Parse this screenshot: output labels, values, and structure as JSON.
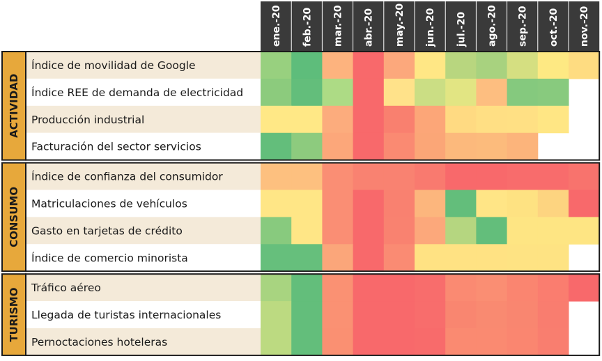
{
  "chart_data": {
    "type": "heatmap",
    "columns": [
      "ene.-20",
      "feb.-20",
      "mar.-20",
      "abr.-20",
      "may.-20",
      "jun.-20",
      "jul.-20",
      "ago.-20",
      "sep.-20",
      "oct.-20",
      "nov.-20"
    ],
    "groups": [
      {
        "name": "ACTIVIDAD",
        "rows": [
          {
            "label": "Índice de movilidad de Google",
            "cells": [
              "#98d07f",
              "#5ebd7b",
              "#fdb37e",
              "#f8696b",
              "#fca87c",
              "#ffe785",
              "#b8d67f",
              "#a8d27f",
              "#d5df81",
              "#fee983",
              "#fedc81"
            ]
          },
          {
            "label": "Índice REE de demanda de electricidad",
            "cells": [
              "#8ccb7d",
              "#63be7b",
              "#addb85",
              "#f8696b",
              "#ffe28a",
              "#cbde84",
              "#e2e583",
              "#fdbe80",
              "#85c97e",
              "#88ca7e",
              null
            ]
          },
          {
            "label": "Producción industrial",
            "cells": [
              "#ffe886",
              "#ffe886",
              "#fcac7d",
              "#f8696b",
              "#f9806f",
              "#fca678",
              "#ffda82",
              "#ffdf84",
              "#ffe084",
              "#ffe684",
              null
            ]
          },
          {
            "label": "Facturación del sector servicios",
            "cells": [
              "#63be7b",
              "#8dcb7e",
              "#fca77a",
              "#f8696b",
              "#fa8a72",
              "#fba677",
              "#fcb97c",
              "#fcbb7c",
              "#fcb47b",
              null,
              null
            ]
          }
        ]
      },
      {
        "name": "CONSUMO",
        "rows": [
          {
            "label": "Índice de confianza del consumidor",
            "cells": [
              "#fdc07f",
              "#fdc07f",
              "#fa8e74",
              "#f98271",
              "#f98271",
              "#f97a6f",
              "#f8696b",
              "#f8696b",
              "#f86c6c",
              "#f86c6c",
              "#f8736d"
            ]
          },
          {
            "label": "Matriculaciones de vehículos",
            "cells": [
              "#ffe686",
              "#ffe686",
              "#fa8e74",
              "#f8696b",
              "#f98170",
              "#fcb67d",
              "#63be7b",
              "#ffe586",
              "#fee282",
              "#fdd480",
              "#f8696b"
            ]
          },
          {
            "label": "Gasto en tarjetas de crédito",
            "cells": [
              "#88ca7e",
              "#ffe686",
              "#fa8e74",
              "#f8696b",
              "#f98270",
              "#fca87b",
              "#b5d680",
              "#63be7b",
              "#fee583",
              "#fee583",
              "#fee583"
            ]
          },
          {
            "label": "Índice de comercio minorista",
            "cells": [
              "#66bf7c",
              "#66bf7c",
              "#fba67a",
              "#f8696b",
              "#fa8b73",
              "#ffe283",
              "#ffe283",
              "#ffe283",
              "#fee383",
              "#fee383",
              null
            ]
          }
        ]
      },
      {
        "name": "TURISMO",
        "rows": [
          {
            "label": "Tráfico aéreo",
            "cells": [
              "#a8d480",
              "#63be7b",
              "#fa9173",
              "#f8696b",
              "#f8696b",
              "#f86d6c",
              "#fa8a72",
              "#fa8e73",
              "#fa8570",
              "#fa7d6f",
              "#f8696b"
            ]
          },
          {
            "label": "Llegada de turistas internacionales",
            "cells": [
              "#bcda81",
              "#63be7b",
              "#fa9173",
              "#f8696b",
              "#f8696b",
              "#f86d6c",
              "#f98670",
              "#f98a71",
              "#f98670",
              "#f97d6f",
              null
            ]
          },
          {
            "label": "Pernoctaciones hoteleras",
            "cells": [
              "#bcda81",
              "#63be7b",
              "#fa9072",
              "#f8696b",
              "#f8696b",
              "#f86b6b",
              "#fa8a71",
              "#fa8a71",
              "#fa8670",
              "#f97e6f",
              null
            ]
          }
        ]
      }
    ],
    "colors": {
      "header_bg": "#3a3a3a",
      "group_bg": "#e7a83b",
      "label_bg_odd": "#f4ead9",
      "label_bg_even": "#ffffff",
      "border": "#1a1a1a"
    }
  }
}
